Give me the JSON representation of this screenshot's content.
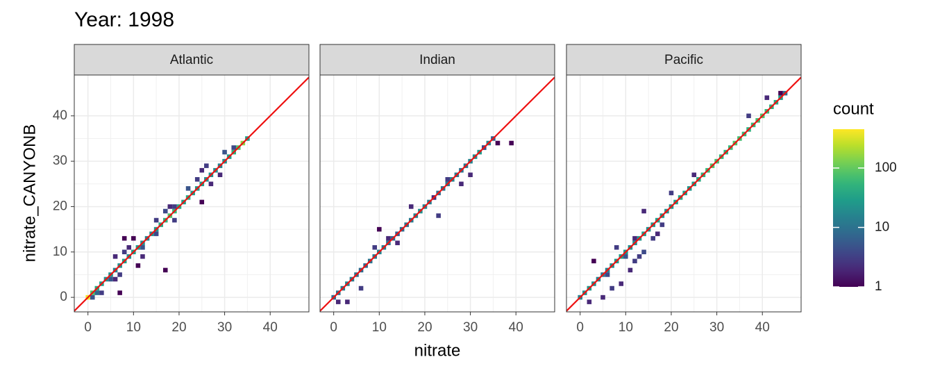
{
  "chart_data": {
    "type": "bin2d",
    "title": "Year: 1998",
    "x_label": "nitrate",
    "y_label": "nitrate_CANYONB",
    "xlim": [
      -3,
      48.5
    ],
    "ylim": [
      -3.2,
      49
    ],
    "xticks": [
      0,
      10,
      20,
      30,
      40
    ],
    "yticks": [
      0,
      10,
      20,
      30,
      40
    ],
    "grid": true,
    "binwidth": 1,
    "abline": {
      "slope": 1,
      "intercept": 0,
      "color": "#ee1111"
    },
    "legend": {
      "title": "count",
      "log": true,
      "clim": [
        1,
        450
      ],
      "ticks": [
        1,
        10,
        100
      ]
    },
    "facets": [
      {
        "name": "Atlantic",
        "x": [
          0,
          1,
          2,
          3,
          4,
          5,
          6,
          7,
          8,
          9,
          10,
          11,
          12,
          13,
          14,
          15,
          16,
          17,
          18,
          19,
          20,
          21,
          22,
          23,
          24,
          25,
          26,
          27,
          28,
          29,
          30,
          31,
          32,
          33,
          34,
          35,
          1,
          2,
          3,
          5,
          6,
          7,
          7,
          6,
          9,
          8,
          12,
          11,
          17,
          12,
          15,
          17,
          19,
          19,
          22,
          24,
          25,
          26,
          27,
          25,
          30,
          32,
          29,
          10,
          8,
          18,
          15
        ],
        "y": [
          0,
          1,
          2,
          3,
          4,
          5,
          6,
          7,
          8,
          9,
          10,
          11,
          12,
          13,
          14,
          15,
          16,
          17,
          18,
          19,
          20,
          21,
          22,
          23,
          24,
          25,
          26,
          27,
          28,
          29,
          30,
          31,
          32,
          33,
          34,
          35,
          0,
          1,
          1,
          4,
          4,
          5,
          1,
          9,
          11,
          10,
          9,
          7,
          6,
          11,
          17,
          19,
          20,
          17,
          24,
          26,
          28,
          29,
          25,
          21,
          32,
          33,
          27,
          13,
          13,
          20,
          14
        ],
        "counts": [
          400,
          80,
          40,
          30,
          20,
          20,
          15,
          20,
          30,
          20,
          30,
          30,
          20,
          15,
          20,
          25,
          40,
          50,
          80,
          60,
          40,
          30,
          40,
          30,
          25,
          30,
          20,
          20,
          20,
          15,
          20,
          30,
          50,
          80,
          150,
          30,
          5,
          8,
          3,
          5,
          2,
          3,
          1,
          2,
          2,
          3,
          2,
          1,
          1,
          5,
          3,
          4,
          3,
          3,
          5,
          3,
          2,
          3,
          2,
          1,
          5,
          4,
          2,
          1,
          1,
          2,
          4
        ]
      },
      {
        "name": "Indian",
        "x": [
          0,
          1,
          2,
          3,
          4,
          5,
          6,
          7,
          8,
          9,
          10,
          11,
          12,
          13,
          14,
          15,
          16,
          17,
          18,
          19,
          20,
          21,
          22,
          23,
          24,
          25,
          26,
          27,
          28,
          29,
          30,
          31,
          32,
          33,
          34,
          35,
          3,
          1,
          6,
          10,
          12,
          22,
          25,
          28,
          36,
          39,
          33,
          17,
          23,
          30,
          9,
          14
        ],
        "y": [
          0,
          1,
          2,
          3,
          4,
          5,
          6,
          7,
          8,
          9,
          10,
          11,
          12,
          13,
          14,
          15,
          16,
          17,
          18,
          19,
          20,
          21,
          22,
          23,
          24,
          25,
          26,
          27,
          28,
          29,
          30,
          31,
          32,
          33,
          34,
          35,
          -1,
          -1,
          2,
          15,
          13,
          22,
          26,
          25,
          34,
          34,
          33,
          20,
          18,
          27,
          11,
          12
        ],
        "counts": [
          8,
          10,
          12,
          15,
          12,
          10,
          8,
          8,
          10,
          12,
          15,
          12,
          10,
          8,
          6,
          8,
          10,
          12,
          15,
          20,
          15,
          12,
          10,
          8,
          10,
          12,
          15,
          12,
          10,
          12,
          15,
          20,
          25,
          20,
          15,
          6,
          2,
          2,
          3,
          1,
          2,
          2,
          3,
          2,
          1,
          1,
          4,
          2,
          3,
          2,
          3,
          2
        ]
      },
      {
        "name": "Pacific",
        "x": [
          0,
          1,
          2,
          3,
          4,
          5,
          6,
          7,
          8,
          9,
          10,
          11,
          12,
          13,
          14,
          15,
          16,
          17,
          18,
          19,
          20,
          21,
          22,
          23,
          24,
          25,
          26,
          27,
          28,
          29,
          30,
          31,
          32,
          33,
          34,
          35,
          36,
          37,
          38,
          39,
          40,
          41,
          42,
          43,
          44,
          45,
          2,
          5,
          7,
          9,
          6,
          12,
          14,
          16,
          18,
          12,
          10,
          3,
          8,
          14,
          20,
          25,
          37,
          41,
          44,
          11,
          13,
          17
        ],
        "y": [
          0,
          1,
          2,
          3,
          4,
          5,
          6,
          7,
          8,
          9,
          10,
          11,
          12,
          13,
          14,
          15,
          16,
          17,
          18,
          19,
          20,
          21,
          22,
          23,
          24,
          25,
          26,
          27,
          28,
          29,
          30,
          31,
          32,
          33,
          34,
          35,
          36,
          37,
          38,
          39,
          40,
          41,
          42,
          43,
          44,
          45,
          -1,
          0,
          2,
          3,
          5,
          8,
          10,
          13,
          16,
          13,
          9,
          8,
          11,
          19,
          23,
          27,
          40,
          44,
          45,
          6,
          9,
          14
        ],
        "counts": [
          15,
          20,
          25,
          20,
          15,
          12,
          15,
          20,
          25,
          30,
          25,
          20,
          20,
          25,
          30,
          20,
          25,
          30,
          25,
          20,
          25,
          30,
          35,
          30,
          25,
          30,
          40,
          50,
          60,
          80,
          70,
          60,
          50,
          60,
          80,
          70,
          60,
          50,
          60,
          70,
          80,
          60,
          50,
          40,
          30,
          10,
          2,
          2,
          3,
          2,
          4,
          3,
          4,
          3,
          3,
          2,
          5,
          1,
          3,
          2,
          3,
          2,
          3,
          2,
          1,
          2,
          3,
          2
        ]
      }
    ]
  }
}
